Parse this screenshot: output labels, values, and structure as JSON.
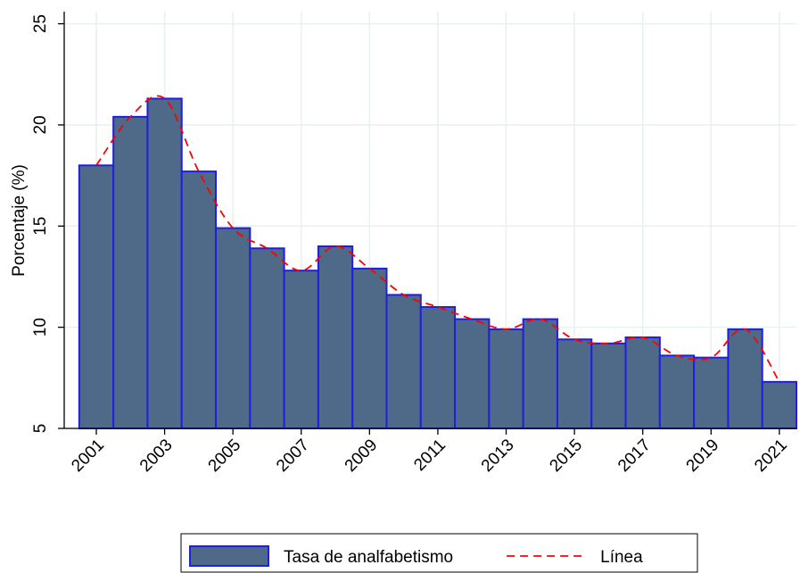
{
  "chart_data": {
    "type": "bar",
    "y_label": "Porcentaje (%)",
    "x": [
      2001,
      2002,
      2003,
      2004,
      2005,
      2006,
      2007,
      2008,
      2009,
      2010,
      2011,
      2012,
      2013,
      2014,
      2015,
      2016,
      2017,
      2018,
      2019,
      2020,
      2021
    ],
    "series": [
      {
        "name": "Tasa de analfabetismo",
        "type": "bar",
        "color": "#4e6a88",
        "edgecolor": "#1f1fe0",
        "values": [
          18.0,
          20.4,
          21.3,
          17.7,
          14.9,
          13.9,
          12.8,
          14.0,
          12.9,
          11.6,
          11.0,
          10.4,
          9.9,
          10.4,
          9.4,
          9.2,
          9.5,
          8.6,
          8.5,
          9.9,
          7.3
        ]
      },
      {
        "name": "Línea",
        "type": "line",
        "color": "#ff0000",
        "dashed": true,
        "smooth": true,
        "values": [
          18.0,
          20.4,
          21.3,
          17.7,
          14.9,
          13.9,
          12.8,
          14.0,
          12.9,
          11.6,
          11.0,
          10.4,
          9.9,
          10.4,
          9.4,
          9.2,
          9.5,
          8.6,
          8.5,
          9.9,
          7.3
        ]
      }
    ],
    "xlim": [
      2000.06,
      2021.5
    ],
    "xticks": [
      2001,
      2003,
      2005,
      2007,
      2009,
      2011,
      2013,
      2015,
      2017,
      2019,
      2021
    ],
    "ylim": [
      5,
      25.6
    ],
    "yticks": [
      5,
      10,
      15,
      20,
      25
    ],
    "grid": true,
    "legend": "bottom"
  }
}
